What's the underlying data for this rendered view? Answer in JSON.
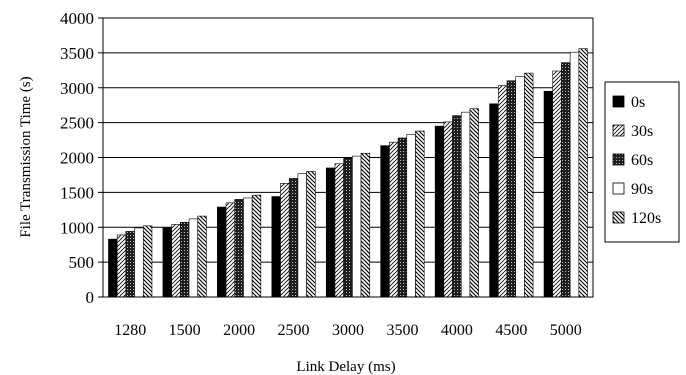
{
  "chart_data": {
    "type": "bar",
    "title": "",
    "xlabel": "Link Delay (ms)",
    "ylabel": "File Transmission Time (s)",
    "ylim": [
      0,
      4000
    ],
    "yticks": [
      "0",
      "500",
      "1000",
      "1500",
      "2000",
      "2500",
      "3000",
      "3500",
      "4000"
    ],
    "grid": "horizontal",
    "legend_position": "right",
    "categories": [
      "1280",
      "1500",
      "2000",
      "2500",
      "3000",
      "3500",
      "4000",
      "4500",
      "5000"
    ],
    "series": [
      {
        "name": "0s",
        "pattern": "solid-black",
        "values": [
          830,
          990,
          1290,
          1440,
          1850,
          2170,
          2450,
          2770,
          2950
        ]
      },
      {
        "name": "30s",
        "pattern": "diagonal-hatch",
        "values": [
          890,
          1040,
          1350,
          1630,
          1910,
          2220,
          2510,
          3030,
          3240
        ]
      },
      {
        "name": "60s",
        "pattern": "crosshatch-dark",
        "values": [
          940,
          1070,
          1400,
          1700,
          1990,
          2280,
          2600,
          3100,
          3360
        ]
      },
      {
        "name": "90s",
        "pattern": "white",
        "values": [
          990,
          1120,
          1420,
          1770,
          2020,
          2330,
          2650,
          3160,
          3510
        ]
      },
      {
        "name": "120s",
        "pattern": "dense-diagonal",
        "values": [
          1020,
          1160,
          1460,
          1800,
          2060,
          2380,
          2700,
          3210,
          3560
        ]
      }
    ]
  }
}
